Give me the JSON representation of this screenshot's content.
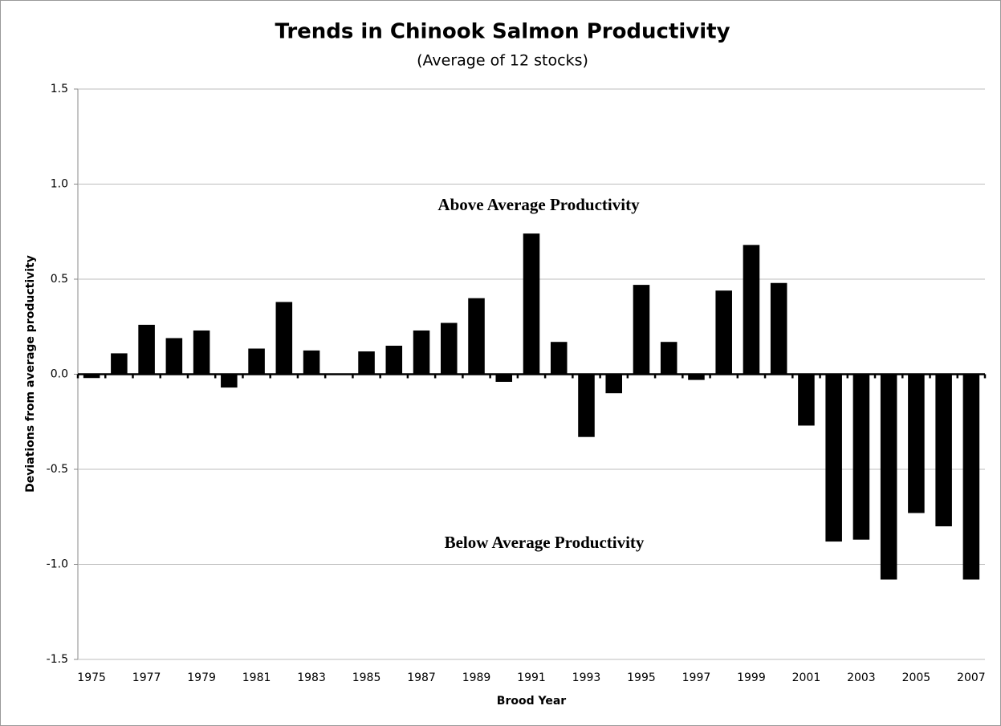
{
  "chart_data": {
    "type": "bar",
    "title": "Trends in Chinook Salmon Productivity",
    "subtitle": "(Average of 12 stocks)",
    "x_label": "Brood Year",
    "y_label": "Deviations from average productivity",
    "annotations": [
      "Above Average Productivity",
      "Below Average Productivity"
    ],
    "categories": [
      "1975",
      null,
      "1977",
      null,
      "1979",
      null,
      "1981",
      null,
      "1983",
      null,
      "1985",
      null,
      "1987",
      null,
      "1989",
      null,
      "1991",
      null,
      "1993",
      null,
      "1995",
      null,
      "1997",
      null,
      "1999",
      null,
      "2001",
      null,
      "2003",
      null,
      "2005",
      null,
      "2007"
    ],
    "values": [
      -0.02,
      0.11,
      0.26,
      0.19,
      0.23,
      -0.07,
      0.135,
      0.38,
      0.125,
      0,
      0.12,
      0.15,
      0.23,
      0.27,
      0.4,
      -0.04,
      0.74,
      0.17,
      -0.33,
      -0.1,
      0.47,
      0.17,
      -0.03,
      0.44,
      0.68,
      0.48,
      -0.27,
      -0.88,
      -0.87,
      -1.08,
      -0.73,
      -0.8,
      -1.08
    ],
    "color": "#000000",
    "ylim": [
      -1.5,
      1.5
    ],
    "yticks": [
      {
        "value": -1.5,
        "label": "-1.5"
      },
      {
        "value": -1,
        "label": "-1.0"
      },
      -0.5,
      {
        "value": 0,
        "label": "0.0"
      },
      {
        "value": 0.5,
        "label": "0.5"
      },
      {
        "value": 1,
        "label": "1.0"
      },
      {
        "value": 1.5,
        "label": "1.5"
      }
    ],
    "grid": true
  }
}
